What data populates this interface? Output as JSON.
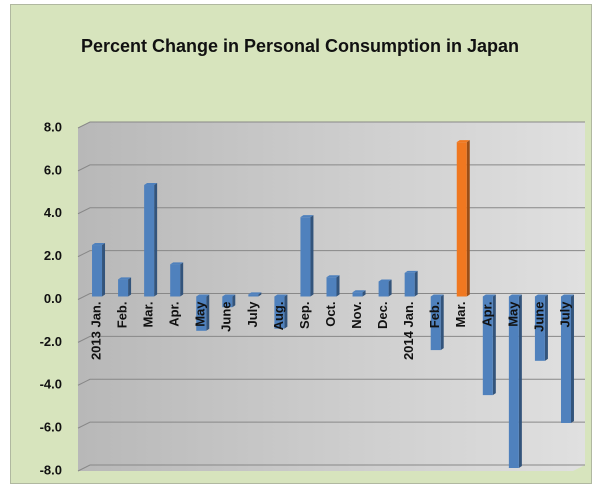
{
  "chart_data": {
    "type": "bar",
    "title": "Percent Change in Personal Consumption in Japan",
    "categories": [
      "2013 Jan.",
      "Feb.",
      "Mar.",
      "Apr.",
      "May",
      "June",
      "July",
      "Aug.",
      "Sep.",
      "Oct.",
      "Nov.",
      "Dec.",
      "2014 Jan.",
      "Feb.",
      "Mar.",
      "Apr.",
      "May",
      "June",
      "July"
    ],
    "values": [
      2.4,
      0.8,
      5.2,
      1.5,
      -1.6,
      -0.5,
      0.1,
      -1.5,
      3.7,
      0.9,
      0.2,
      0.7,
      1.1,
      -2.5,
      7.2,
      -4.6,
      -8.0,
      -3.0,
      -5.9
    ],
    "colors": [
      "#4f81bd",
      "#4f81bd",
      "#4f81bd",
      "#4f81bd",
      "#4f81bd",
      "#4f81bd",
      "#4f81bd",
      "#4f81bd",
      "#4f81bd",
      "#4f81bd",
      "#4f81bd",
      "#4f81bd",
      "#4f81bd",
      "#4f81bd",
      "#f07820",
      "#4f81bd",
      "#4f81bd",
      "#4f81bd",
      "#4f81bd"
    ],
    "ylim": [
      -8,
      8
    ],
    "yticks": [
      {
        "value": -8,
        "label": "-8.0"
      },
      {
        "value": -6,
        "label": "-6.0"
      },
      {
        "value": -4,
        "label": "-4.0"
      },
      {
        "value": -2,
        "label": "-2.0"
      },
      {
        "value": 0,
        "label": "0.0"
      },
      {
        "value": 2,
        "label": "2.0"
      },
      {
        "value": 4,
        "label": "4.0"
      },
      {
        "value": 6,
        "label": "6.0"
      },
      {
        "value": 8,
        "label": "8.0"
      }
    ],
    "grid": true
  }
}
